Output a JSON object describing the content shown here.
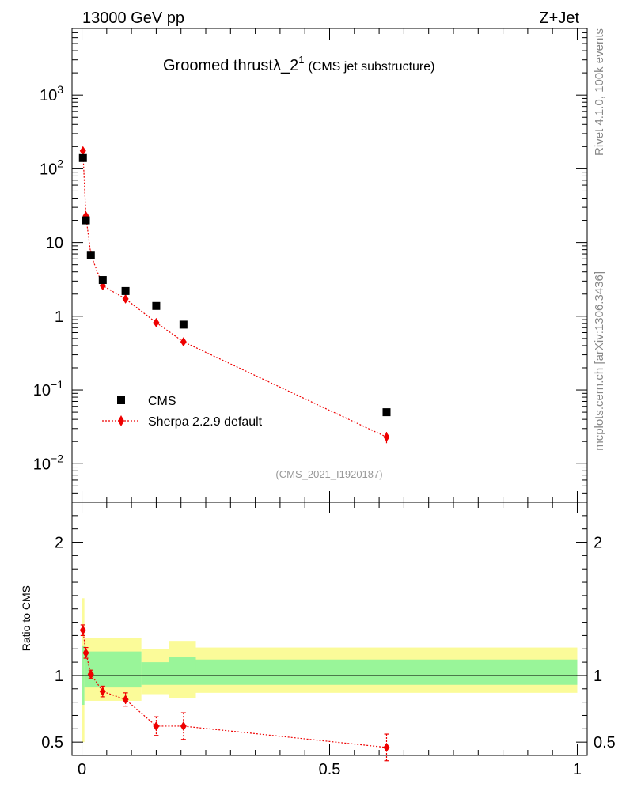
{
  "header": {
    "beam": "13000 GeV pp",
    "process": "Z+Jet"
  },
  "side_labels": {
    "rivet": "Rivet 4.1.0,  100k events",
    "mcplots": "mcplots.cern.ch [arXiv:1306.3436]"
  },
  "chart_data": [
    {
      "type": "scatter",
      "panel": "main",
      "title_main": "Groomed thrust",
      "title_lambda": "λ_2",
      "title_sup": "1",
      "title_note": "(CMS jet substructure)",
      "analysis_label": "(CMS_2021_I1920187)",
      "yscale": "log",
      "xlim": [
        -0.02,
        1.02
      ],
      "ylim": [
        0.003,
        8000
      ],
      "yticks": [
        {
          "base": "10",
          "exp": "3",
          "value": 1000
        },
        {
          "base": "10",
          "exp": "2",
          "value": 100
        },
        {
          "text": "10",
          "value": 10
        },
        {
          "text": "1",
          "value": 1
        },
        {
          "base": "10",
          "exp": "−1",
          "value": 0.1
        },
        {
          "base": "10",
          "exp": "−2",
          "value": 0.01
        }
      ],
      "legend": {
        "placement": "left-middle",
        "entries": [
          {
            "label": "CMS",
            "marker": "square",
            "color": "#000000"
          },
          {
            "label": "Sherpa 2.2.9 default",
            "marker": "diamond",
            "color": "#ee0000"
          }
        ]
      },
      "series": [
        {
          "name": "CMS",
          "color": "#000000",
          "x": [
            0.002,
            0.008,
            0.018,
            0.042,
            0.088,
            0.15,
            0.205,
            0.615
          ],
          "y": [
            140,
            20,
            6.8,
            3.1,
            2.2,
            1.38,
            0.77,
            0.05
          ]
        },
        {
          "name": "Sherpa 2.2.9 default",
          "color": "#ee0000",
          "x": [
            0.002,
            0.008,
            0.018,
            0.042,
            0.088,
            0.15,
            0.205,
            0.615
          ],
          "y": [
            175,
            23,
            6.8,
            2.6,
            1.72,
            0.82,
            0.45,
            0.023
          ],
          "yerr": [
            10,
            2,
            0.4,
            0.25,
            0.15,
            0.08,
            0.06,
            0.004
          ]
        }
      ]
    },
    {
      "type": "scatter",
      "panel": "ratio",
      "ylabel": "Ratio to CMS",
      "xlim": [
        -0.02,
        1.02
      ],
      "ylim": [
        0.4,
        2.3
      ],
      "yticks": [
        {
          "text": "2",
          "value": 2
        },
        {
          "text": "1",
          "value": 1
        },
        {
          "text": "0.5",
          "value": 0.5
        }
      ],
      "xticks": [
        {
          "text": "0",
          "value": 0
        },
        {
          "text": "0.5",
          "value": 0.5
        },
        {
          "text": "1",
          "value": 1
        }
      ],
      "bands": [
        {
          "x0": 0.0,
          "x1": 0.005,
          "inner": [
            0.78,
            1.22
          ],
          "outer": [
            0.5,
            1.58
          ]
        },
        {
          "x0": 0.005,
          "x1": 0.12,
          "inner": [
            0.91,
            1.18
          ],
          "outer": [
            0.81,
            1.28
          ]
        },
        {
          "x0": 0.12,
          "x1": 0.175,
          "inner": [
            0.93,
            1.1
          ],
          "outer": [
            0.86,
            1.2
          ]
        },
        {
          "x0": 0.175,
          "x1": 0.23,
          "inner": [
            0.93,
            1.14
          ],
          "outer": [
            0.83,
            1.26
          ]
        },
        {
          "x0": 0.23,
          "x1": 1.0,
          "inner": [
            0.93,
            1.12
          ],
          "outer": [
            0.87,
            1.21
          ]
        }
      ],
      "band_colors": {
        "inner": "#99f599",
        "outer": "#fbfb99"
      },
      "series": [
        {
          "name": "Sherpa 2.2.9 default",
          "color": "#ee0000",
          "x": [
            0.002,
            0.008,
            0.018,
            0.042,
            0.088,
            0.15,
            0.205,
            0.615
          ],
          "y": [
            1.34,
            1.17,
            1.01,
            0.88,
            0.82,
            0.62,
            0.62,
            0.46
          ],
          "yerr": [
            0.04,
            0.04,
            0.03,
            0.04,
            0.05,
            0.07,
            0.1,
            0.1
          ]
        }
      ]
    }
  ]
}
